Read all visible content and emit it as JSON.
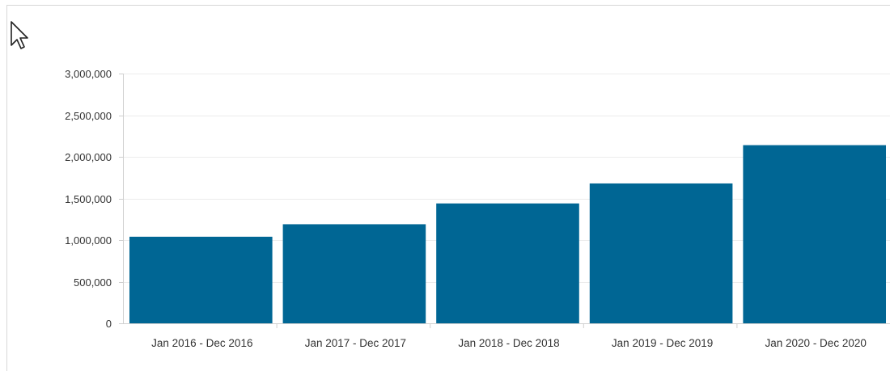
{
  "chart_data": {
    "type": "bar",
    "title": "",
    "xlabel": "",
    "ylabel": "",
    "categories": [
      "Jan 2016 - Dec 2016",
      "Jan 2017 - Dec 2017",
      "Jan 2018 - Dec 2018",
      "Jan 2019 - Dec 2019",
      "Jan 2020 - Dec 2020"
    ],
    "values": [
      1040000,
      1190000,
      1440000,
      1680000,
      2140000
    ],
    "ylim": [
      0,
      3000000
    ],
    "yticks": [
      0,
      500000,
      1000000,
      1500000,
      2000000,
      2500000,
      3000000
    ],
    "ytick_labels": [
      "0",
      "500,000",
      "1,000,000",
      "1,500,000",
      "2,000,000",
      "2,500,000",
      "3,000,000"
    ],
    "bar_color": "#006694",
    "grid": true,
    "legend": "none"
  },
  "cursor": {
    "icon": "mouse-pointer-icon"
  }
}
